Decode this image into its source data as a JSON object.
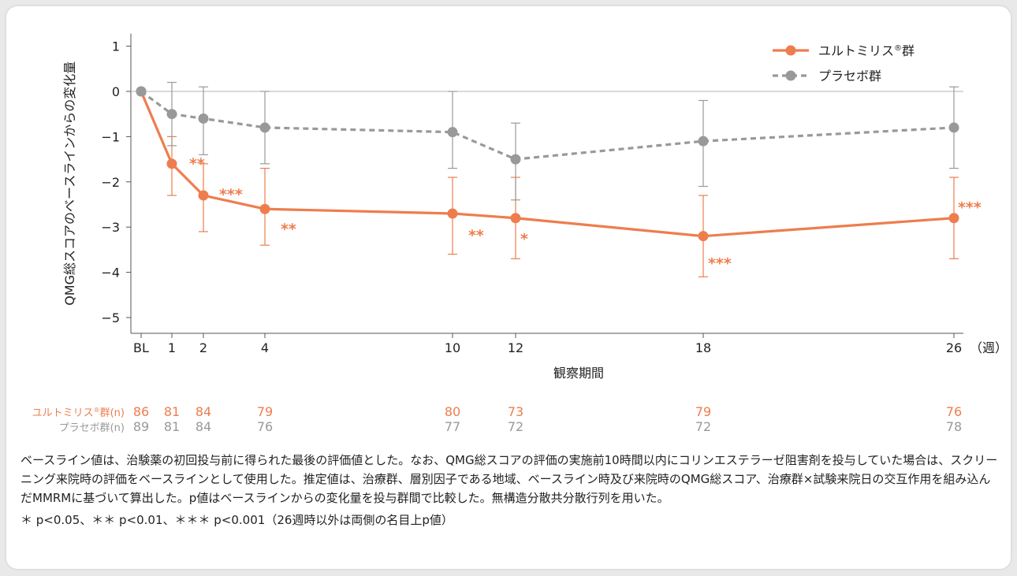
{
  "colors": {
    "drug": "#ee7d4e",
    "placebo": "#999999",
    "error_bar": "#9a9a9a",
    "axis": "#555555"
  },
  "chart_data": {
    "type": "line",
    "xlabel": "観察期間",
    "x_unit_label": "（週）",
    "ylabel": "QMG総スコアのベースラインからの変化量",
    "ylim": [
      -5,
      1
    ],
    "yticks": [
      1,
      0,
      -1,
      -2,
      -3,
      -4,
      -5
    ],
    "ytick_labels": [
      "1",
      "0",
      "−1",
      "−2",
      "−3",
      "−4",
      "−5"
    ],
    "x": [
      0,
      1,
      2,
      4,
      10,
      12,
      18,
      26
    ],
    "x_tick_labels": [
      "BL",
      "1",
      "2",
      "4",
      "10",
      "12",
      "18",
      "26"
    ],
    "reference_line_y": 0,
    "legend_position": "top-right",
    "series": [
      {
        "name": "ユルトミリス",
        "name_suffix": "群",
        "style": "solid",
        "values": [
          0,
          -1.6,
          -2.3,
          -2.6,
          -2.7,
          -2.8,
          -3.2,
          -2.8
        ],
        "err_low": [
          0,
          -2.3,
          -3.1,
          -3.4,
          -3.6,
          -3.7,
          -4.1,
          -3.7
        ],
        "err_high": [
          0,
          -1.0,
          -1.6,
          -1.7,
          -1.9,
          -1.9,
          -2.3,
          -1.9
        ],
        "significance": [
          "",
          "**",
          "***",
          "**",
          "**",
          "*",
          "***",
          "***"
        ]
      },
      {
        "name": "プラセボ群",
        "style": "dashed",
        "values": [
          0,
          -0.5,
          -0.6,
          -0.8,
          -0.9,
          -1.5,
          -1.1,
          -0.8
        ],
        "err_low": [
          0,
          -1.2,
          -1.4,
          -1.6,
          -1.7,
          -2.4,
          -2.1,
          -1.7
        ],
        "err_high": [
          0,
          0.2,
          0.1,
          0.0,
          0.0,
          -0.7,
          -0.2,
          0.1
        ]
      }
    ],
    "n_table": {
      "rows": [
        {
          "label": "ユルトミリス",
          "label_suffix": "群(n)",
          "values": [
            "86",
            "81",
            "84",
            "79",
            "80",
            "73",
            "79",
            "76"
          ]
        },
        {
          "label": "プラセボ群(n)",
          "values": [
            "89",
            "81",
            "84",
            "76",
            "77",
            "72",
            "72",
            "78"
          ]
        }
      ]
    }
  },
  "footnotes": {
    "main": "ベースライン値は、治験薬の初回投与前に得られた最後の評価値とした。なお、QMG総スコアの評価の実施前10時間以内にコリンエステラーゼ阻害剤を投与していた場合は、スクリーニング来院時の評価をベースラインとして使用した。推定値は、治療群、層別因子である地域、ベースライン時及び来院時のQMG総スコア、治療群×試験来院日の交互作用を組み込んだMMRMに基づいて算出した。p値はベースラインからの変化量を投与群間で比較した。無構造分散共分散行列を用いた。",
    "significance": "＊ p<0.05、＊＊ p<0.01、＊＊＊ p<0.001（26週時以外は両側の名目上p値）"
  }
}
